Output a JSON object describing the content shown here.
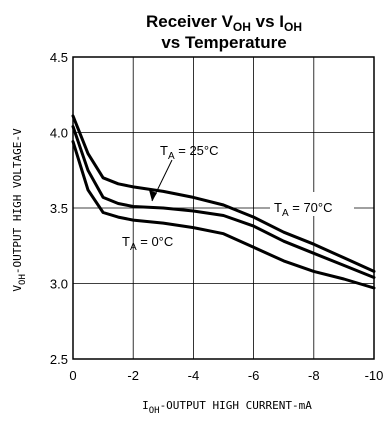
{
  "chart_data": {
    "type": "line",
    "title": {
      "line1_main": "Receiver V",
      "line1_sub1": "OH",
      "line1_mid": " vs I",
      "line1_sub2": "OH",
      "line2": "vs Temperature"
    },
    "xlabel": {
      "pre": "I",
      "sub": "OH",
      "post": "-OUTPUT HIGH CURRENT-mA"
    },
    "ylabel": {
      "pre": "V",
      "sub": "OH",
      "post": "-OUTPUT HIGH VOLTAGE-V"
    },
    "xlim": [
      0,
      -10
    ],
    "ylim": [
      2.5,
      4.5
    ],
    "x_ticks": [
      "0",
      "-2",
      "-4",
      "-6",
      "-8",
      "-10"
    ],
    "y_ticks": [
      "4.5",
      "4.0",
      "3.5",
      "3.0",
      "2.5"
    ],
    "grid": true,
    "series": [
      {
        "name": "T_A = 25°C",
        "x": [
          0,
          -0.5,
          -1,
          -1.5,
          -2,
          -3,
          -4,
          -5,
          -6,
          -7,
          -8,
          -9,
          -10
        ],
        "y": [
          4.04,
          3.75,
          3.57,
          3.53,
          3.51,
          3.5,
          3.48,
          3.45,
          3.38,
          3.28,
          3.2,
          3.12,
          3.04
        ]
      },
      {
        "name": "T_A = 70°C",
        "x": [
          0,
          -0.5,
          -1,
          -1.5,
          -2,
          -3,
          -4,
          -5,
          -6,
          -7,
          -8,
          -9,
          -10
        ],
        "y": [
          4.11,
          3.86,
          3.7,
          3.66,
          3.64,
          3.61,
          3.57,
          3.52,
          3.44,
          3.34,
          3.26,
          3.17,
          3.08
        ]
      },
      {
        "name": "T_A = 0°C",
        "x": [
          0,
          -0.5,
          -1,
          -1.5,
          -2,
          -3,
          -4,
          -5,
          -6,
          -7,
          -8,
          -9,
          -10
        ],
        "y": [
          3.94,
          3.62,
          3.47,
          3.44,
          3.42,
          3.4,
          3.37,
          3.33,
          3.24,
          3.15,
          3.08,
          3.03,
          2.97
        ]
      }
    ],
    "annotations": [
      {
        "series": "T_A = 25°C",
        "pre": "T",
        "sub": "A",
        "post": " = 25°C"
      },
      {
        "series": "T_A = 70°C",
        "pre": "T",
        "sub": "A",
        "post": " = 70°C"
      },
      {
        "series": "T_A = 0°C",
        "pre": "T",
        "sub": "A",
        "post": " = 0°C"
      }
    ]
  }
}
